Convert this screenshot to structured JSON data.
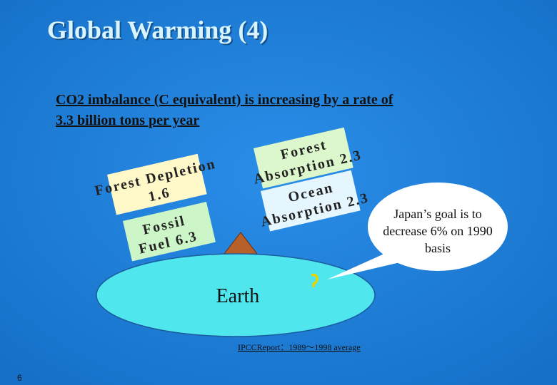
{
  "title": "Global Warming (4)",
  "subtitle": {
    "lines": [
      "CO2 imbalance (C equivalent) is increasing by a  rate of",
      "3.3 billion tons per year"
    ]
  },
  "left_boxes": [
    {
      "lines": [
        "Forest Depletion",
        "1.6"
      ]
    },
    {
      "lines": [
        "Fossil",
        "Fuel 6.3"
      ]
    }
  ],
  "right_boxes": [
    {
      "lines": [
        "Forest",
        "Absorption 2.3"
      ]
    },
    {
      "lines": [
        "Ocean",
        "Absorption 2.3"
      ]
    }
  ],
  "earth_label": "Earth",
  "callout": {
    "lines": [
      "Japan’s goal is to",
      "decrease 6% on 1990",
      "basis"
    ]
  },
  "source": "IPCCReport：1989～1998 average",
  "page_number": "6"
}
